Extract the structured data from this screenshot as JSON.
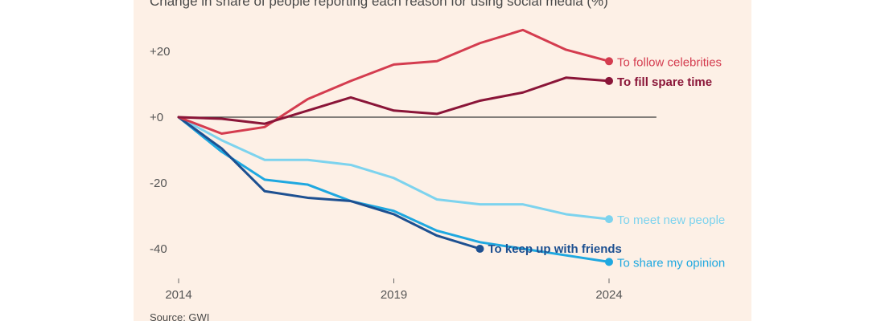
{
  "subtitle": "Change in share of people reporting each reason for using social media (%)",
  "source": "Source: GWI",
  "chart_data": {
    "type": "line",
    "title": "Change in share of people reporting each reason for using social media (%)",
    "xlabel": "",
    "ylabel": "",
    "x": [
      2014,
      2015,
      2016,
      2017,
      2018,
      2019,
      2020,
      2021,
      2022,
      2023,
      2024
    ],
    "xlim": [
      2014,
      2025
    ],
    "ylim": [
      -50,
      35
    ],
    "yticks": [
      20,
      0,
      -20,
      -40
    ],
    "ytick_labels": [
      "+20",
      "+0",
      "-20",
      "-40"
    ],
    "xticks": [
      2014,
      2019,
      2024
    ],
    "xtick_labels": [
      "2014",
      "2019",
      "2024"
    ],
    "grid": false,
    "zero_line": true,
    "series": [
      {
        "name": "To follow celebrities",
        "color": "#d43c4f",
        "values": [
          0,
          -5,
          -3,
          5.5,
          11,
          16,
          17,
          22.5,
          26.5,
          20.5,
          17
        ]
      },
      {
        "name": "To fill spare time",
        "color": "#8a1538",
        "values": [
          0,
          -0.5,
          -2,
          2,
          6,
          2,
          1,
          5,
          7.5,
          12,
          11
        ]
      },
      {
        "name": "To meet new people",
        "color": "#7dd3ee",
        "values": [
          0,
          -7,
          -13,
          -13,
          -14.5,
          -18.5,
          -25,
          -26.5,
          -26.5,
          -29.5,
          -31
        ]
      },
      {
        "name": "To keep up with friends",
        "color": "#1d5091",
        "values": [
          0,
          -9.5,
          -22.5,
          -24.5,
          -25.5,
          -29.5,
          -36,
          -40,
          null,
          null,
          null
        ]
      },
      {
        "name": "To share my opinion",
        "color": "#1fa8e0",
        "values": [
          0,
          -10.5,
          -19,
          -20.5,
          -25.5,
          -28.5,
          -34.5,
          -38,
          -40,
          -42,
          -44
        ]
      }
    ]
  }
}
